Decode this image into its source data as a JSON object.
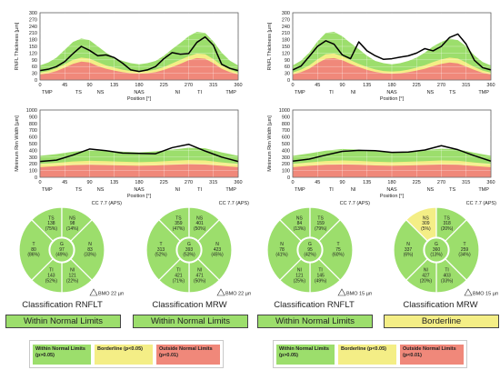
{
  "colors": {
    "within_normal": "#9cde6c",
    "borderline": "#f4ee86",
    "outside_normal": "#f0887a",
    "sector_fill": "#9cde6c",
    "sector_borderline": "#f4ee86",
    "line": "#000000"
  },
  "chart_data": [
    {
      "type": "area",
      "id": "rnfl-left",
      "ylabel": "RNFL Thickness [µm]",
      "xlabel": "Position [°]",
      "ylim": [
        0,
        300
      ],
      "yticks": [
        0,
        30,
        60,
        90,
        120,
        150,
        180,
        210,
        240,
        270,
        300
      ],
      "xlim": [
        0,
        360
      ],
      "xticks": [
        0,
        45,
        90,
        135,
        180,
        225,
        270,
        315,
        360
      ],
      "region_labels": [
        {
          "x": 13,
          "text": "TMP"
        },
        {
          "x": 70,
          "text": "TS"
        },
        {
          "x": 110,
          "text": "NS"
        },
        {
          "x": 180,
          "text": "NAS"
        },
        {
          "x": 250,
          "text": "NI"
        },
        {
          "x": 290,
          "text": "TI"
        },
        {
          "x": 347,
          "text": "TMP"
        }
      ],
      "x": [
        0,
        15,
        30,
        45,
        60,
        75,
        90,
        105,
        120,
        135,
        150,
        165,
        180,
        195,
        210,
        225,
        240,
        255,
        270,
        285,
        300,
        315,
        330,
        345,
        360
      ],
      "outside": [
        25,
        30,
        40,
        55,
        72,
        82,
        78,
        62,
        50,
        42,
        35,
        30,
        28,
        30,
        35,
        45,
        58,
        72,
        88,
        98,
        95,
        75,
        50,
        35,
        25
      ],
      "borderline": [
        33,
        40,
        52,
        70,
        90,
        100,
        96,
        80,
        65,
        55,
        46,
        40,
        38,
        40,
        46,
        58,
        74,
        90,
        106,
        118,
        115,
        93,
        65,
        46,
        33
      ],
      "within": [
        65,
        78,
        100,
        135,
        170,
        185,
        178,
        150,
        122,
        100,
        85,
        75,
        70,
        75,
        85,
        108,
        138,
        165,
        195,
        215,
        210,
        172,
        122,
        86,
        65
      ],
      "series": [
        {
          "values": [
            42,
            48,
            60,
            82,
            118,
            150,
            132,
            108,
            112,
            100,
            75,
            45,
            38,
            45,
            60,
            95,
            122,
            115,
            118,
            168,
            192,
            155,
            70,
            52,
            42
          ]
        }
      ]
    },
    {
      "type": "area",
      "id": "rnfl-right",
      "ylabel": "RNFL Thickness [µm]",
      "xlabel": "Position [°]",
      "ylim": [
        0,
        300
      ],
      "yticks": [
        0,
        30,
        60,
        90,
        120,
        150,
        180,
        210,
        240,
        270,
        300
      ],
      "xlim": [
        0,
        360
      ],
      "xticks": [
        0,
        45,
        90,
        135,
        180,
        225,
        270,
        315,
        360
      ],
      "region_labels": [
        {
          "x": 13,
          "text": "TMP"
        },
        {
          "x": 70,
          "text": "TI"
        },
        {
          "x": 110,
          "text": "NI"
        },
        {
          "x": 180,
          "text": "NAS"
        },
        {
          "x": 250,
          "text": "NS"
        },
        {
          "x": 290,
          "text": "TS"
        },
        {
          "x": 347,
          "text": "TMP"
        }
      ],
      "x": [
        0,
        15,
        30,
        45,
        60,
        75,
        90,
        105,
        120,
        135,
        150,
        165,
        180,
        195,
        210,
        225,
        240,
        255,
        270,
        285,
        300,
        315,
        330,
        345,
        360
      ],
      "outside": [
        25,
        35,
        50,
        75,
        95,
        98,
        88,
        72,
        58,
        45,
        36,
        30,
        28,
        30,
        35,
        42,
        50,
        62,
        72,
        78,
        74,
        60,
        45,
        32,
        25
      ],
      "borderline": [
        33,
        46,
        65,
        92,
        115,
        118,
        106,
        88,
        72,
        58,
        47,
        40,
        38,
        40,
        46,
        55,
        66,
        80,
        92,
        100,
        96,
        78,
        58,
        42,
        33
      ],
      "within": [
        65,
        86,
        122,
        172,
        210,
        215,
        195,
        165,
        138,
        108,
        85,
        75,
        70,
        75,
        85,
        100,
        122,
        150,
        170,
        185,
        178,
        150,
        110,
        80,
        65
      ],
      "series": [
        {
          "values": [
            45,
            62,
            105,
            150,
            175,
            160,
            112,
            95,
            170,
            130,
            108,
            92,
            95,
            102,
            108,
            120,
            140,
            130,
            150,
            190,
            205,
            160,
            88,
            55,
            45
          ]
        }
      ]
    },
    {
      "type": "area",
      "id": "mrw-left",
      "ylabel": "Minimum Rim Width [µm]",
      "xlabel": "Position [°]",
      "ylim": [
        0,
        1000
      ],
      "yticks": [
        0,
        100,
        200,
        300,
        400,
        500,
        600,
        700,
        800,
        900,
        1000
      ],
      "xlim": [
        0,
        360
      ],
      "xticks": [
        0,
        45,
        90,
        135,
        180,
        225,
        270,
        315,
        360
      ],
      "region_labels": [
        {
          "x": 13,
          "text": "TMP"
        },
        {
          "x": 70,
          "text": "TS"
        },
        {
          "x": 110,
          "text": "NS"
        },
        {
          "x": 180,
          "text": "NAS"
        },
        {
          "x": 250,
          "text": "NI"
        },
        {
          "x": 290,
          "text": "TI"
        },
        {
          "x": 347,
          "text": "TMP"
        }
      ],
      "x": [
        0,
        30,
        60,
        90,
        120,
        150,
        180,
        210,
        240,
        270,
        300,
        330,
        360
      ],
      "outside": [
        150,
        165,
        180,
        185,
        180,
        175,
        170,
        175,
        185,
        195,
        190,
        170,
        150
      ],
      "borderline": [
        200,
        215,
        235,
        245,
        240,
        232,
        225,
        232,
        245,
        255,
        250,
        222,
        200
      ],
      "within": [
        320,
        345,
        380,
        400,
        395,
        380,
        370,
        385,
        410,
        440,
        430,
        370,
        320
      ],
      "series": [
        {
          "values": [
            235,
            255,
            330,
            420,
            395,
            360,
            355,
            350,
            440,
            490,
            390,
            300,
            235
          ]
        }
      ]
    },
    {
      "type": "area",
      "id": "mrw-right",
      "ylabel": "Minimum Rim Width [µm]",
      "xlabel": "Position [°]",
      "ylim": [
        0,
        1000
      ],
      "yticks": [
        0,
        100,
        200,
        300,
        400,
        500,
        600,
        700,
        800,
        900,
        1000
      ],
      "xlim": [
        0,
        360
      ],
      "xticks": [
        0,
        45,
        90,
        135,
        180,
        225,
        270,
        315,
        360
      ],
      "region_labels": [
        {
          "x": 13,
          "text": "TMP"
        },
        {
          "x": 70,
          "text": "TI"
        },
        {
          "x": 110,
          "text": "NI"
        },
        {
          "x": 180,
          "text": "NAS"
        },
        {
          "x": 250,
          "text": "NS"
        },
        {
          "x": 290,
          "text": "TS"
        },
        {
          "x": 347,
          "text": "TMP"
        }
      ],
      "x": [
        0,
        30,
        60,
        90,
        120,
        150,
        180,
        210,
        240,
        270,
        300,
        330,
        360
      ],
      "outside": [
        150,
        170,
        185,
        190,
        185,
        175,
        170,
        175,
        182,
        190,
        185,
        168,
        150
      ],
      "borderline": [
        200,
        222,
        242,
        250,
        244,
        232,
        225,
        232,
        240,
        250,
        245,
        220,
        200
      ],
      "within": [
        320,
        355,
        395,
        420,
        410,
        385,
        370,
        385,
        400,
        425,
        415,
        365,
        320
      ],
      "series": [
        {
          "values": [
            240,
            270,
            330,
            385,
            400,
            395,
            370,
            375,
            405,
            470,
            410,
            320,
            240
          ]
        }
      ]
    }
  ],
  "sector_panels": [
    {
      "cc_label": "CC 7.7 (APS)",
      "bmo_label": "BMO 22 µm",
      "TS": {
        "name": "TS",
        "value": "138",
        "pct": "(75%)"
      },
      "NS": {
        "name": "NS",
        "value": "98",
        "pct": "(14%)"
      },
      "N": {
        "name": "N",
        "value": "83",
        "pct": "(33%)"
      },
      "NI": {
        "name": "NI",
        "value": "121",
        "pct": "(22%)"
      },
      "TI": {
        "name": "TI",
        "value": "143",
        "pct": "(52%)"
      },
      "T": {
        "name": "T",
        "value": "80",
        "pct": "(86%)"
      },
      "G": {
        "name": "G",
        "value": "97",
        "pct": "(49%)"
      },
      "title": "Classification RNFLT",
      "classification": "Within Normal Limits",
      "class_color": "within_normal",
      "colors": {
        "TS": "within_normal",
        "NS": "within_normal",
        "N": "within_normal",
        "NI": "within_normal",
        "TI": "within_normal",
        "T": "within_normal",
        "G": "within_normal"
      }
    },
    {
      "cc_label": "CC 7.7 (APS)",
      "bmo_label": "BMO 22 µm",
      "TS": {
        "name": "TS",
        "value": "359",
        "pct": "(47%)"
      },
      "NS": {
        "name": "NS",
        "value": "401",
        "pct": "(50%)"
      },
      "N": {
        "name": "N",
        "value": "423",
        "pct": "(45%)"
      },
      "NI": {
        "name": "NI",
        "value": "471",
        "pct": "(50%)"
      },
      "TI": {
        "name": "TI",
        "value": "421",
        "pct": "(71%)"
      },
      "T": {
        "name": "T",
        "value": "313",
        "pct": "(52%)"
      },
      "G": {
        "name": "G",
        "value": "393",
        "pct": "(53%)"
      },
      "title": "Classification MRW",
      "classification": "Within Normal Limits",
      "class_color": "within_normal",
      "colors": {
        "TS": "within_normal",
        "NS": "within_normal",
        "N": "within_normal",
        "NI": "within_normal",
        "TI": "within_normal",
        "T": "within_normal",
        "G": "within_normal"
      }
    },
    {
      "cc_label": "CC 7.7 (APS)",
      "bmo_label": "BMO 15 µm",
      "TS": {
        "name": "NS",
        "value": "84",
        "pct": "(13%)"
      },
      "NS": {
        "name": "TS",
        "value": "159",
        "pct": "(79%)"
      },
      "N": {
        "name": "T",
        "value": "75",
        "pct": "(60%)"
      },
      "NI": {
        "name": "TI",
        "value": "145",
        "pct": "(49%)"
      },
      "TI": {
        "name": "NI",
        "value": "121",
        "pct": "(25%)"
      },
      "T": {
        "name": "N",
        "value": "78",
        "pct": "(41%)"
      },
      "G": {
        "name": "G",
        "value": "95",
        "pct": "(42%)"
      },
      "title": "Classification RNFLT",
      "classification": "Within Normal Limits",
      "class_color": "within_normal",
      "colors": {
        "TS": "within_normal",
        "NS": "within_normal",
        "N": "within_normal",
        "NI": "within_normal",
        "TI": "within_normal",
        "T": "within_normal",
        "G": "within_normal"
      }
    },
    {
      "cc_label": "CC 7.7 (APS)",
      "bmo_label": "BMO 15 µm",
      "TS": {
        "name": "NS",
        "value": "309",
        "pct": "(5%)"
      },
      "NS": {
        "name": "TS",
        "value": "318",
        "pct": "(20%)"
      },
      "N": {
        "name": "T",
        "value": "259",
        "pct": "(34%)"
      },
      "NI": {
        "name": "TI",
        "value": "403",
        "pct": "(33%)"
      },
      "TI": {
        "name": "NI",
        "value": "427",
        "pct": "(20%)"
      },
      "T": {
        "name": "N",
        "value": "337",
        "pct": "(6%)"
      },
      "G": {
        "name": "G",
        "value": "360",
        "pct": "(13%)"
      },
      "title": "Classification MRW",
      "classification": "Borderline",
      "class_color": "borderline",
      "colors": {
        "TS": "borderline",
        "NS": "within_normal",
        "N": "within_normal",
        "NI": "within_normal",
        "TI": "within_normal",
        "T": "within_normal",
        "G": "within_normal"
      }
    }
  ],
  "legend": [
    {
      "within": "Within Normal Limits (p>0.05)",
      "borderline": "Borderline (p<0.05)",
      "outside": "Outside Normal Limits (p<0.01)"
    },
    {
      "within": "Within Normal Limits (p>0.05)",
      "borderline": "Borderline (p<0.05)",
      "outside": "Outside Normal Limits (p<0.01)"
    }
  ]
}
